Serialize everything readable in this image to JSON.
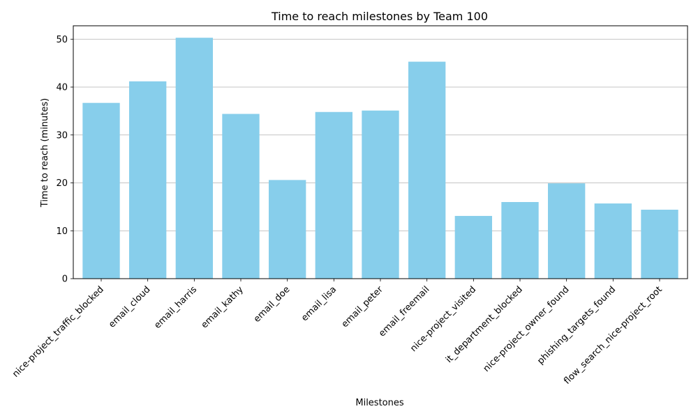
{
  "chart_data": {
    "type": "bar",
    "title": "Time to reach milestones by Team 100",
    "xlabel": "Milestones",
    "ylabel": "Time to reach (minutes)",
    "categories": [
      "nice-project_traffic_blocked",
      "email_cloud",
      "email_harris",
      "email_kathy",
      "email_doe",
      "email_lisa",
      "email_peter",
      "email_freemail",
      "nice-project_visited",
      "it_department_blocked",
      "nice-project_owner_found",
      "phishing_targets_found",
      "flow_search_nice-project_root"
    ],
    "values": [
      36.7,
      41.2,
      50.3,
      34.4,
      20.6,
      34.8,
      35.1,
      45.3,
      13.1,
      16.0,
      19.9,
      15.7,
      14.4
    ],
    "ylim": [
      0,
      52.8
    ],
    "yticks": [
      0,
      10,
      20,
      30,
      40,
      50
    ],
    "grid": "y",
    "bar_color": "#87CEEB",
    "legend": "none"
  }
}
